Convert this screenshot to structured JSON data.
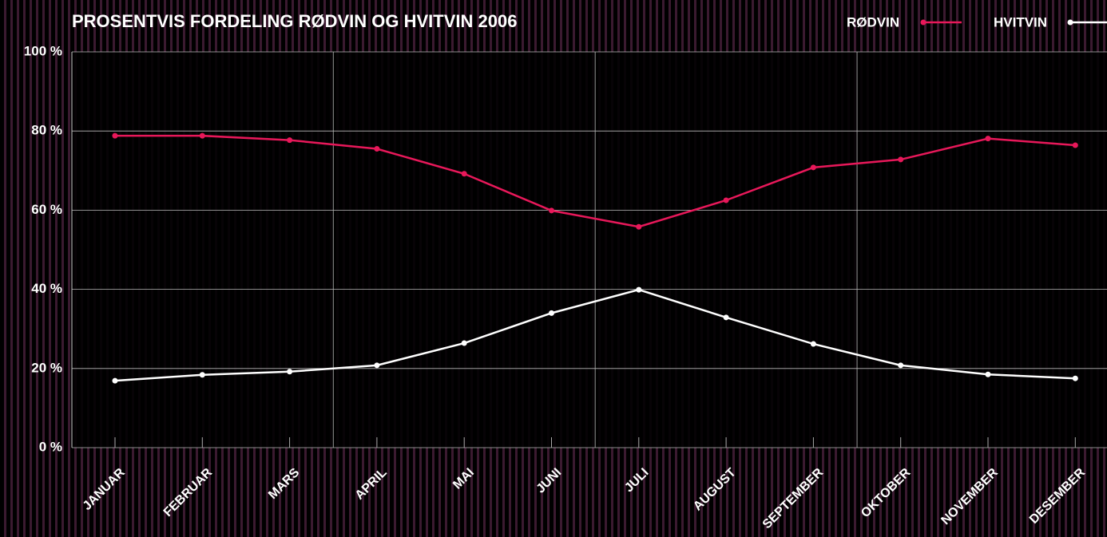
{
  "chart_data": {
    "type": "line",
    "title": "PROSENTVIS FORDELING RØDVIN OG HVITVIN 2006",
    "categories": [
      "JANUAR",
      "FEBRUAR",
      "MARS",
      "APRIL",
      "MAI",
      "JUNI",
      "JULI",
      "AUGUST",
      "SEPTEMBER",
      "OKTOBER",
      "NOVEMBER",
      "DESEMBER"
    ],
    "series": [
      {
        "name": "RØDVIN",
        "color": "#e8185a",
        "values": [
          78.8,
          78.8,
          77.7,
          75.5,
          69.2,
          59.9,
          55.8,
          62.5,
          70.8,
          72.8,
          78.1,
          76.4
        ]
      },
      {
        "name": "HVITVIN",
        "color": "#ffffff",
        "values": [
          16.9,
          18.4,
          19.2,
          20.8,
          26.4,
          34.0,
          39.9,
          32.9,
          26.2,
          20.8,
          18.5,
          17.5
        ]
      }
    ],
    "ylim": [
      0,
      100
    ],
    "yticks": [
      {
        "value": 0,
        "label": "0 %"
      },
      {
        "value": 20,
        "label": "20 %"
      },
      {
        "value": 40,
        "label": "40 %"
      },
      {
        "value": 60,
        "label": "60 %"
      },
      {
        "value": 80,
        "label": "80 %"
      },
      {
        "value": 100,
        "label": "100 %"
      }
    ],
    "grid": true,
    "legend": "top-right"
  }
}
